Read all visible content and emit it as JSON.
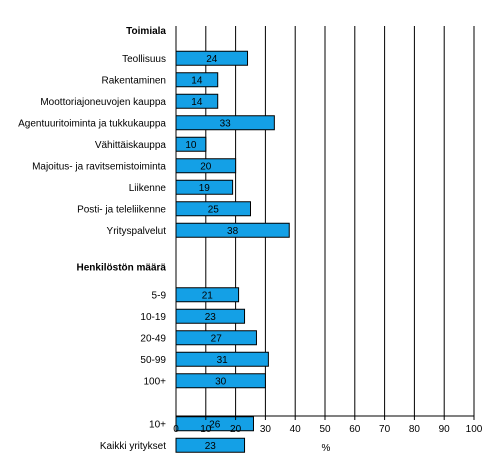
{
  "chart_data": {
    "type": "bar",
    "orientation": "horizontal",
    "xlabel": "%",
    "xlim": [
      0,
      100
    ],
    "xticks": [
      0,
      10,
      20,
      30,
      40,
      50,
      60,
      70,
      80,
      90,
      100
    ],
    "grid": "vertical",
    "bar_color": "#14a0e6",
    "rows": [
      {
        "kind": "header",
        "label": "Toimiala"
      },
      {
        "kind": "bar",
        "label": "Teollisuus",
        "value": 24
      },
      {
        "kind": "bar",
        "label": "Rakentaminen",
        "value": 14
      },
      {
        "kind": "bar",
        "label": "Moottoriajoneuvojen kauppa",
        "value": 14
      },
      {
        "kind": "bar",
        "label": "Agentuuritoiminta ja tukkukauppa",
        "value": 33
      },
      {
        "kind": "bar",
        "label": "Vähittäiskauppa",
        "value": 10
      },
      {
        "kind": "bar",
        "label": "Majoitus- ja ravitsemistoiminta",
        "value": 20
      },
      {
        "kind": "bar",
        "label": "Liikenne",
        "value": 19
      },
      {
        "kind": "bar",
        "label": "Posti- ja teleliikenne",
        "value": 25
      },
      {
        "kind": "bar",
        "label": "Yrityspalvelut",
        "value": 38
      },
      {
        "kind": "blank"
      },
      {
        "kind": "header",
        "label": "Henkilöstön määrä"
      },
      {
        "kind": "bar",
        "label": "5-9",
        "value": 21
      },
      {
        "kind": "bar",
        "label": "10-19",
        "value": 23
      },
      {
        "kind": "bar",
        "label": "20-49",
        "value": 27
      },
      {
        "kind": "bar",
        "label": "50-99",
        "value": 31
      },
      {
        "kind": "bar",
        "label": "100+",
        "value": 30
      },
      {
        "kind": "blank"
      },
      {
        "kind": "bar",
        "label": "10+",
        "value": 26
      },
      {
        "kind": "bar",
        "label": "Kaikki yritykset",
        "value": 23
      }
    ]
  }
}
